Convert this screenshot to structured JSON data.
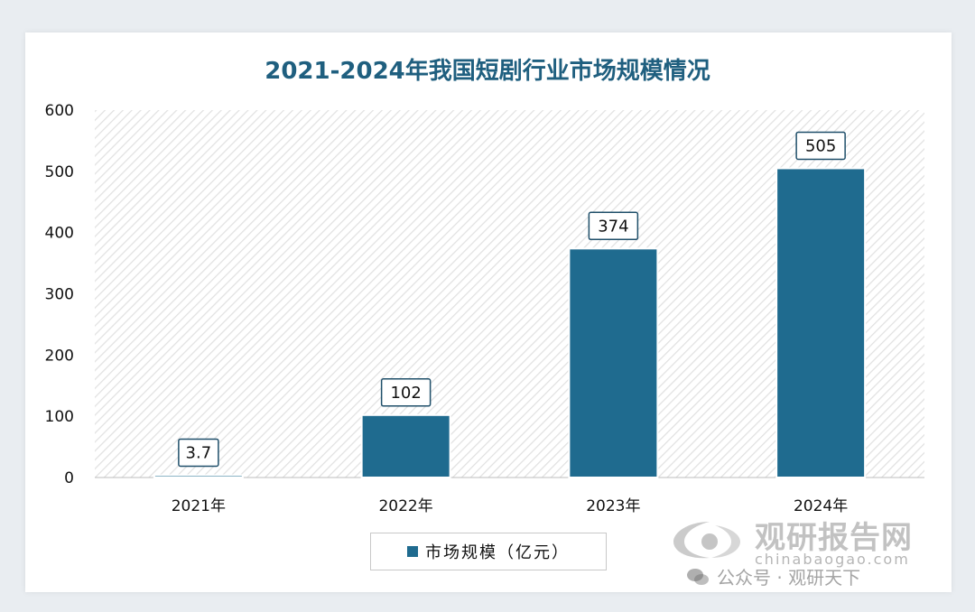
{
  "chart_data": {
    "type": "bar",
    "title": "2021-2024年我国短剧行业市场规模情况",
    "categories": [
      "2021年",
      "2022年",
      "2023年",
      "2024年"
    ],
    "series": [
      {
        "name": "市场规模（亿元）",
        "values": [
          3.7,
          102,
          374,
          505
        ]
      }
    ],
    "data_labels": [
      "3.7",
      "102",
      "374",
      "505"
    ],
    "y_ticks": [
      "0",
      "100",
      "200",
      "300",
      "400",
      "500",
      "600"
    ],
    "ylim": [
      0,
      600
    ],
    "xlabel": "",
    "ylabel": "",
    "grid": false,
    "legend_position": "bottom",
    "colors": {
      "bar": "#1f6b8f",
      "title": "#1f5f7f",
      "plot_hatch": "#e3e3e3"
    }
  },
  "watermark": {
    "brand": "观研报告网",
    "domain": "chinabaogao.com",
    "public_account": "公众号 · 观研天下"
  }
}
